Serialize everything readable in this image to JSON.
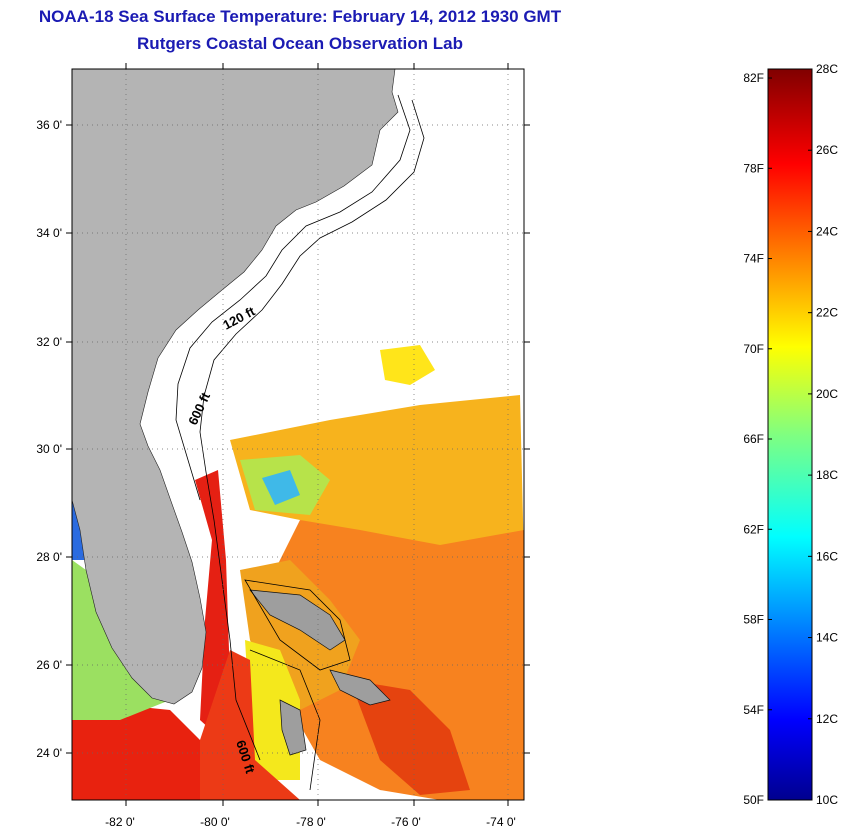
{
  "header": {
    "title": "NOAA-18 Sea Surface Temperature:  February 14, 2012 1930 GMT",
    "subtitle": "Rutgers Coastal Ocean Observation Lab"
  },
  "map": {
    "lat_labels": [
      "36 0'",
      "34 0'",
      "32 0'",
      "30 0'",
      "28 0'",
      "26 0'",
      "24 0'"
    ],
    "lon_labels": [
      "-82 0'",
      "-80 0'",
      "-78 0'",
      "-76 0'",
      "-74 0'"
    ],
    "contour_labels": [
      "120 ft",
      "600 ft",
      "600 ft"
    ],
    "colors": {
      "land": "#b4b4b4",
      "cloud": "#ffffff",
      "grid": "#555555"
    }
  },
  "colorbar": {
    "fahrenheit_labels": [
      "82F",
      "78F",
      "74F",
      "70F",
      "66F",
      "62F",
      "58F",
      "54F",
      "50F"
    ],
    "celsius_labels": [
      "28C",
      "26C",
      "24C",
      "22C",
      "20C",
      "18C",
      "16C",
      "14C",
      "12C",
      "10C"
    ],
    "range_c": [
      10,
      28
    ],
    "colormap": "jet"
  }
}
